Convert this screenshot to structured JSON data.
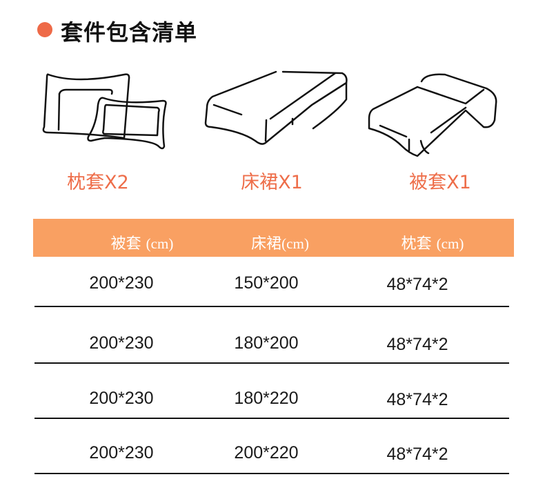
{
  "title": "套件包含清单",
  "colors": {
    "accent": "#EE6A48",
    "header_bg": "#F9A062",
    "label": "#EE6E4A"
  },
  "items": [
    {
      "label": "枕套X2",
      "icon": "pillow-icon"
    },
    {
      "label": "床裙X1",
      "icon": "bed-skirt-icon"
    },
    {
      "label": "被套X1",
      "icon": "duvet-cover-icon"
    }
  ],
  "table": {
    "headers": [
      {
        "name": "被套",
        "unit": "(cm)"
      },
      {
        "name": "床裙",
        "unit": "(cm)"
      },
      {
        "name": "枕套",
        "unit": "(cm)"
      }
    ],
    "rows": [
      [
        "200*230",
        "150*200",
        "48*74*2"
      ],
      [
        "200*230",
        "180*200",
        "48*74*2"
      ],
      [
        "200*230",
        "180*220",
        "48*74*2"
      ],
      [
        "200*230",
        "200*220",
        "48*74*2"
      ]
    ]
  }
}
